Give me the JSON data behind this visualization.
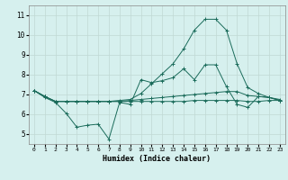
{
  "xlabel": "Humidex (Indice chaleur)",
  "background_color": "#d6f0ee",
  "grid_color": "#c0d8d4",
  "line_color": "#1a6b5a",
  "xlim": [
    -0.5,
    23.5
  ],
  "ylim": [
    4.5,
    11.5
  ],
  "xticks": [
    0,
    1,
    2,
    3,
    4,
    5,
    6,
    7,
    8,
    9,
    10,
    11,
    12,
    13,
    14,
    15,
    16,
    17,
    18,
    19,
    20,
    21,
    22,
    23
  ],
  "yticks": [
    5,
    6,
    7,
    8,
    9,
    10,
    11
  ],
  "x": [
    0,
    1,
    2,
    3,
    4,
    5,
    6,
    7,
    8,
    9,
    10,
    11,
    12,
    13,
    14,
    15,
    16,
    17,
    18,
    19,
    20,
    21,
    22,
    23
  ],
  "line_peak": [
    7.2,
    6.9,
    6.65,
    6.65,
    6.65,
    6.65,
    6.65,
    6.65,
    6.7,
    6.75,
    7.05,
    7.55,
    8.05,
    8.55,
    9.3,
    10.25,
    10.8,
    10.8,
    10.25,
    8.55,
    7.35,
    7.05,
    6.85,
    6.75
  ],
  "line_dip": [
    7.2,
    6.85,
    6.6,
    6.05,
    5.35,
    5.45,
    5.5,
    4.75,
    6.6,
    6.5,
    7.75,
    7.6,
    7.7,
    7.85,
    8.3,
    7.75,
    8.5,
    8.5,
    7.4,
    6.5,
    6.35,
    6.9,
    6.85,
    6.7
  ],
  "line_flat1": [
    7.2,
    6.9,
    6.65,
    6.65,
    6.65,
    6.65,
    6.65,
    6.65,
    6.65,
    6.65,
    6.65,
    6.65,
    6.65,
    6.65,
    6.65,
    6.7,
    6.7,
    6.7,
    6.7,
    6.7,
    6.65,
    6.65,
    6.7,
    6.7
  ],
  "line_flat2": [
    7.2,
    6.9,
    6.65,
    6.65,
    6.65,
    6.65,
    6.65,
    6.65,
    6.65,
    6.7,
    6.75,
    6.8,
    6.85,
    6.9,
    6.95,
    7.0,
    7.05,
    7.1,
    7.15,
    7.15,
    6.95,
    6.9,
    6.85,
    6.7
  ]
}
